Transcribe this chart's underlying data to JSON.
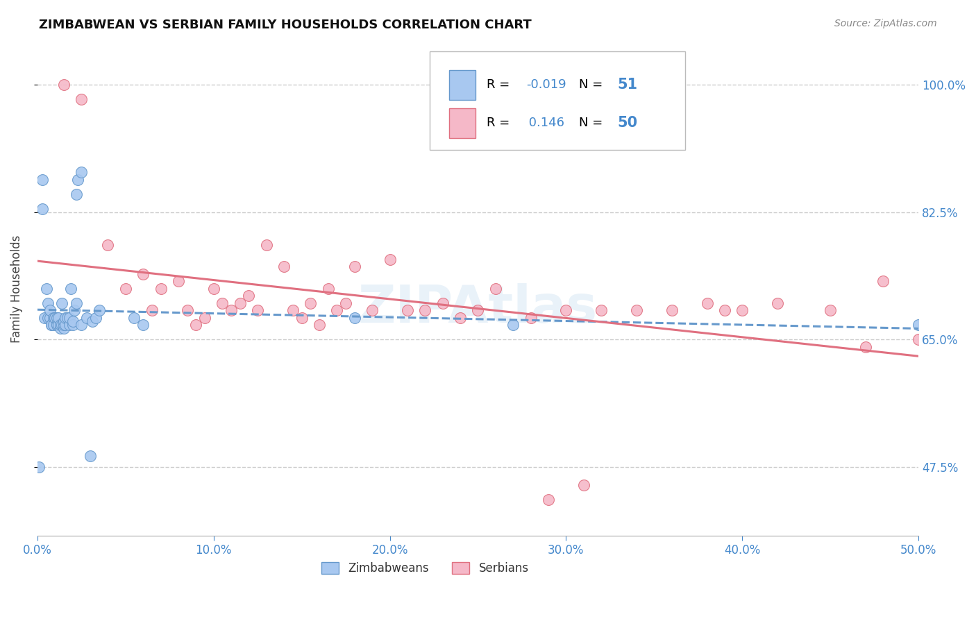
{
  "title": "ZIMBABWEAN VS SERBIAN FAMILY HOUSEHOLDS CORRELATION CHART",
  "source": "Source: ZipAtlas.com",
  "ylabel": "Family Households",
  "yticks": [
    0.475,
    0.65,
    0.825,
    1.0
  ],
  "ytick_labels": [
    "47.5%",
    "65.0%",
    "82.5%",
    "100.0%"
  ],
  "watermark": "ZIPAtlas",
  "legend": {
    "zimbabwean_color": "#a8c8f0",
    "serbian_color": "#f5b8c8",
    "zimbabwean_R": "-0.019",
    "zimbabwean_N": "51",
    "serbian_R": "0.146",
    "serbian_N": "50"
  },
  "zimbabwean_scatter_x": [
    0.001,
    0.003,
    0.003,
    0.004,
    0.005,
    0.006,
    0.006,
    0.007,
    0.007,
    0.008,
    0.008,
    0.009,
    0.009,
    0.01,
    0.01,
    0.011,
    0.011,
    0.011,
    0.012,
    0.012,
    0.013,
    0.013,
    0.014,
    0.014,
    0.015,
    0.015,
    0.015,
    0.016,
    0.016,
    0.017,
    0.018,
    0.018,
    0.019,
    0.02,
    0.02,
    0.021,
    0.022,
    0.022,
    0.023,
    0.025,
    0.025,
    0.028,
    0.03,
    0.031,
    0.033,
    0.035,
    0.055,
    0.06,
    0.18,
    0.27,
    0.5
  ],
  "zimbabwean_scatter_y": [
    0.475,
    0.83,
    0.87,
    0.68,
    0.72,
    0.68,
    0.7,
    0.68,
    0.69,
    0.67,
    0.67,
    0.68,
    0.67,
    0.68,
    0.68,
    0.67,
    0.67,
    0.68,
    0.67,
    0.68,
    0.665,
    0.67,
    0.67,
    0.7,
    0.665,
    0.67,
    0.675,
    0.67,
    0.68,
    0.68,
    0.67,
    0.68,
    0.72,
    0.67,
    0.675,
    0.69,
    0.7,
    0.85,
    0.87,
    0.88,
    0.67,
    0.68,
    0.49,
    0.675,
    0.68,
    0.69,
    0.68,
    0.67,
    0.68,
    0.67,
    0.67
  ],
  "serbian_scatter_x": [
    0.015,
    0.025,
    0.04,
    0.05,
    0.06,
    0.065,
    0.07,
    0.08,
    0.085,
    0.09,
    0.095,
    0.1,
    0.105,
    0.11,
    0.115,
    0.12,
    0.125,
    0.13,
    0.14,
    0.145,
    0.15,
    0.155,
    0.16,
    0.165,
    0.17,
    0.175,
    0.18,
    0.19,
    0.2,
    0.21,
    0.22,
    0.23,
    0.24,
    0.25,
    0.26,
    0.28,
    0.29,
    0.3,
    0.31,
    0.32,
    0.34,
    0.36,
    0.38,
    0.39,
    0.4,
    0.42,
    0.45,
    0.47,
    0.48,
    0.5
  ],
  "serbian_scatter_y": [
    1.0,
    0.98,
    0.78,
    0.72,
    0.74,
    0.69,
    0.72,
    0.73,
    0.69,
    0.67,
    0.68,
    0.72,
    0.7,
    0.69,
    0.7,
    0.71,
    0.69,
    0.78,
    0.75,
    0.69,
    0.68,
    0.7,
    0.67,
    0.72,
    0.69,
    0.7,
    0.75,
    0.69,
    0.76,
    0.69,
    0.69,
    0.7,
    0.68,
    0.69,
    0.72,
    0.68,
    0.43,
    0.69,
    0.45,
    0.69,
    0.69,
    0.69,
    0.7,
    0.69,
    0.69,
    0.7,
    0.69,
    0.64,
    0.73,
    0.65
  ],
  "blue_line_color": "#6699cc",
  "pink_line_color": "#e07080",
  "title_color": "#111111",
  "axis_label_color": "#4488cc",
  "background_color": "#ffffff",
  "grid_color": "#cccccc",
  "xmin": 0.0,
  "xmax": 0.5,
  "ymin": 0.38,
  "ymax": 1.06
}
